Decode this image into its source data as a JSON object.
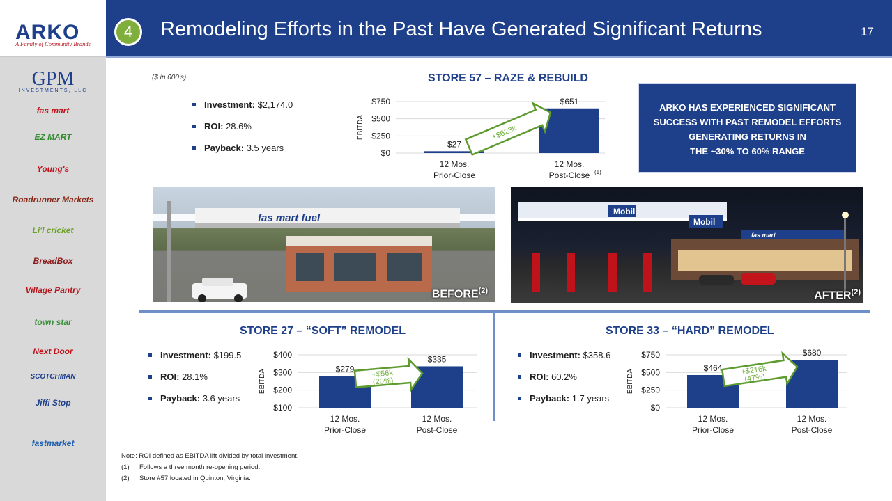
{
  "rail": {
    "logo": "ARKO",
    "tagline": "A Family of Community Brands",
    "brands": [
      {
        "name": "GPM",
        "sub": "INVESTMENTS, LLC"
      },
      {
        "name": "fas mart",
        "color": "#c0121b"
      },
      {
        "name": "EZ MART",
        "color": "#2f8a2c"
      },
      {
        "name": "Young's",
        "color": "#c0121b"
      },
      {
        "name": "Roadrunner Markets",
        "color": "#8a2a1a"
      },
      {
        "name": "Li'l cricket",
        "color": "#6aa123"
      },
      {
        "name": "BreadBox",
        "color": "#8a1a1a"
      },
      {
        "name": "Village Pantry",
        "color": "#b5141b"
      },
      {
        "name": "town star",
        "color": "#3a8f3a"
      },
      {
        "name": "Next Door",
        "color": "#c0121b"
      },
      {
        "name": "SCOTCHMAN",
        "color": "#1e3f8a"
      },
      {
        "name": "Jiffi Stop",
        "color": "#1e3f8a"
      },
      {
        "name": "fastmarket",
        "color": "#1e5fb0"
      }
    ]
  },
  "header": {
    "section_number": "4",
    "title": "Remodeling Efforts in the Past Have Generated Significant Returns",
    "page_number": "17"
  },
  "units_note": "($ in 000's)",
  "store57": {
    "investment_label": "Investment:",
    "investment_value": " $2,174.0",
    "roi_label": "ROI:",
    "roi_value": " 28.6%",
    "payback_label": "Payback:",
    "payback_value": " 3.5 years"
  },
  "store27": {
    "investment_label": "Investment:",
    "investment_value": " $199.5",
    "roi_label": "ROI:",
    "roi_value": " 28.1%",
    "payback_label": "Payback:",
    "payback_value": " 3.6 years"
  },
  "store33": {
    "investment_label": "Investment:",
    "investment_value": " $358.6",
    "roi_label": "ROI:",
    "roi_value": " 60.2%",
    "payback_label": "Payback:",
    "payback_value": " 1.7 years"
  },
  "callout": {
    "line1": "ARKO HAS EXPERIENCED SIGNIFICANT",
    "line2": "SUCCESS WITH PAST REMODEL EFFORTS",
    "line3": "GENERATING RETURNS IN",
    "line4": "THE ~30% TO 60% RANGE"
  },
  "photos": {
    "before_label": "BEFORE",
    "before_sup": "(2)",
    "after_label": "AFTER",
    "after_sup": "(2)",
    "before_sign": "fas mart fuel",
    "after_sign": "Mobil",
    "after_store_sign": "fas mart"
  },
  "notes": {
    "note": "Note:  ROI defined as EBITDA lift divided by total investment.",
    "n1_idx": "(1)",
    "n1": "Follows a three month re-opening period.",
    "n2_idx": "(2)",
    "n2": "Store #57 located in Quinton, Virginia."
  },
  "colors": {
    "brand_blue": "#1e3f8a",
    "badge_green": "#7fae3c",
    "arrow_green": "#5e9b2e",
    "divider": "#6f8fc8"
  },
  "chart_data": [
    {
      "type": "bar",
      "title": "STORE 57 – RAZE & REBUILD",
      "categories": [
        "12 Mos. Prior-Close",
        "12 Mos. Post-Close"
      ],
      "category_lines": [
        [
          "12 Mos.",
          "Prior-Close"
        ],
        [
          "12 Mos.",
          "Post-Close"
        ]
      ],
      "category_sup": [
        "",
        "(1)"
      ],
      "values": [
        27,
        651
      ],
      "value_labels": [
        "$27",
        "$651"
      ],
      "ylabel": "EBITDA",
      "ylim": [
        0,
        750
      ],
      "yticks": [
        0,
        250,
        500,
        750
      ],
      "ytick_labels": [
        "$0",
        "$250",
        "$500",
        "$750"
      ],
      "annotation": "+$623k",
      "grid": true,
      "bar_color": "#1e3f8a"
    },
    {
      "type": "bar",
      "title": "STORE 27 – “SOFT” REMODEL",
      "categories": [
        "12 Mos. Prior-Close",
        "12 Mos. Post-Close"
      ],
      "category_lines": [
        [
          "12 Mos.",
          "Prior-Close"
        ],
        [
          "12 Mos.",
          "Post-Close"
        ]
      ],
      "category_sup": [
        "",
        ""
      ],
      "values": [
        279,
        335
      ],
      "value_labels": [
        "$279",
        "$335"
      ],
      "ylabel": "EBITDA",
      "ylim": [
        100,
        400
      ],
      "yticks": [
        100,
        200,
        300,
        400
      ],
      "ytick_labels": [
        "$100",
        "$200",
        "$300",
        "$400"
      ],
      "annotation": "+$56k",
      "annotation2": "(20%)",
      "grid": true,
      "bar_color": "#1e3f8a"
    },
    {
      "type": "bar",
      "title": "STORE 33 – “HARD” REMODEL",
      "categories": [
        "12 Mos. Prior-Close",
        "12 Mos. Post-Close"
      ],
      "category_lines": [
        [
          "12 Mos.",
          "Prior-Close"
        ],
        [
          "12 Mos.",
          "Post-Close"
        ]
      ],
      "category_sup": [
        "",
        ""
      ],
      "values": [
        464,
        680
      ],
      "value_labels": [
        "$464",
        "$680"
      ],
      "ylabel": "EBITDA",
      "ylim": [
        0,
        750
      ],
      "yticks": [
        0,
        250,
        500,
        750
      ],
      "ytick_labels": [
        "$0",
        "$250",
        "$500",
        "$750"
      ],
      "annotation": "+$216k",
      "annotation2": "(47%)",
      "grid": true,
      "bar_color": "#1e3f8a"
    }
  ]
}
